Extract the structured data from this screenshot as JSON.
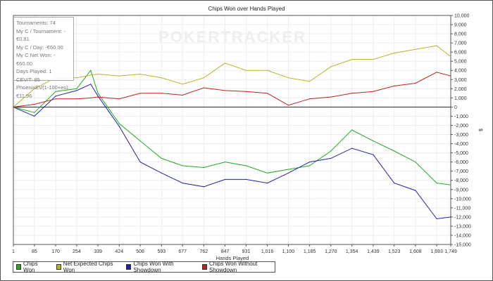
{
  "chart_data": {
    "type": "line",
    "title": "Chips Won over Hands Played",
    "xlabel": "Hands Played",
    "ylabel": "$",
    "watermark": "POKERTRACKER",
    "xlim": [
      1,
      1749
    ],
    "ylim": [
      -15000,
      10000
    ],
    "x_ticks": [
      1,
      85,
      170,
      254,
      339,
      424,
      508,
      593,
      677,
      762,
      847,
      931,
      1016,
      1100,
      1185,
      1270,
      1354,
      1439,
      1523,
      1608,
      1693,
      1749
    ],
    "x_tick_labels": [
      "1",
      "85",
      "170",
      "254",
      "339",
      "424",
      "508",
      "593",
      "677",
      "762",
      "847",
      "931",
      "1,016",
      "1,100",
      "1,185",
      "1,270",
      "1,354",
      "1,439",
      "1,523",
      "1,608",
      "1,693",
      "1,749"
    ],
    "y_tick_labels": [
      "10,000",
      "9,000",
      "8,000",
      "7,000",
      "6,000",
      "5,000",
      "4,000",
      "3,000",
      "2,000",
      "1,000",
      "0",
      "-1,000",
      "-2,000",
      "-3,000",
      "-4,000",
      "-5,000",
      "-6,000",
      "-7,000",
      "-8,000",
      "-9,000",
      "-10,000",
      "-11,000",
      "-12,000",
      "-13,000",
      "-14,000",
      "-15,000"
    ],
    "y_ticks": [
      10000,
      9000,
      8000,
      7000,
      6000,
      5000,
      4000,
      3000,
      2000,
      1000,
      0,
      -1000,
      -2000,
      -3000,
      -4000,
      -5000,
      -6000,
      -7000,
      -8000,
      -9000,
      -10000,
      -11000,
      -12000,
      -13000,
      -14000,
      -15000
    ],
    "grid": true,
    "legend_position": "bottom-left",
    "x": [
      1,
      85,
      170,
      254,
      310,
      339,
      424,
      508,
      593,
      677,
      762,
      847,
      931,
      1016,
      1100,
      1185,
      1270,
      1354,
      1439,
      1523,
      1608,
      1693,
      1749
    ],
    "series": [
      {
        "name": "Chips Won",
        "color": "#22aa22",
        "values": [
          0,
          -600,
          1700,
          2000,
          4000,
          1500,
          -1800,
          -3700,
          -5600,
          -6400,
          -6600,
          -6000,
          -6400,
          -7200,
          -6800,
          -6400,
          -4800,
          -2500,
          -3700,
          -4800,
          -6000,
          -8300,
          -8500
        ]
      },
      {
        "name": "Net Expected Chips Won",
        "color": "#b5b52a",
        "values": [
          0,
          2000,
          3200,
          3200,
          3500,
          3600,
          3400,
          3600,
          3200,
          2500,
          3200,
          4800,
          4000,
          4000,
          3200,
          2800,
          4400,
          5200,
          5200,
          5900,
          6300,
          6700,
          5500
        ]
      },
      {
        "name": "Chips Won With Showdown",
        "color": "#2222aa",
        "values": [
          0,
          -1000,
          1200,
          1800,
          2500,
          1200,
          -2100,
          -6000,
          -7200,
          -8300,
          -8700,
          -7900,
          -7900,
          -8300,
          -7200,
          -6000,
          -5600,
          -4500,
          -5200,
          -8300,
          -9100,
          -12200,
          -12000
        ]
      },
      {
        "name": "Chips Won Without Showdown",
        "color": "#bb2222",
        "values": [
          0,
          300,
          900,
          900,
          1000,
          1100,
          900,
          1500,
          1500,
          1300,
          2100,
          1800,
          1700,
          1500,
          200,
          900,
          1100,
          1500,
          1700,
          2300,
          2600,
          3800,
          3400
        ]
      }
    ]
  },
  "stats": [
    "Tournaments: 74",
    "My C / Tournament: -€0.81",
    "My C / Day: -€60.00",
    "My C Net Won: -€60.00",
    "Days Played: 1",
    "CEV/T: 85",
    "PhoenixEV(1-100+es): €11.96"
  ]
}
